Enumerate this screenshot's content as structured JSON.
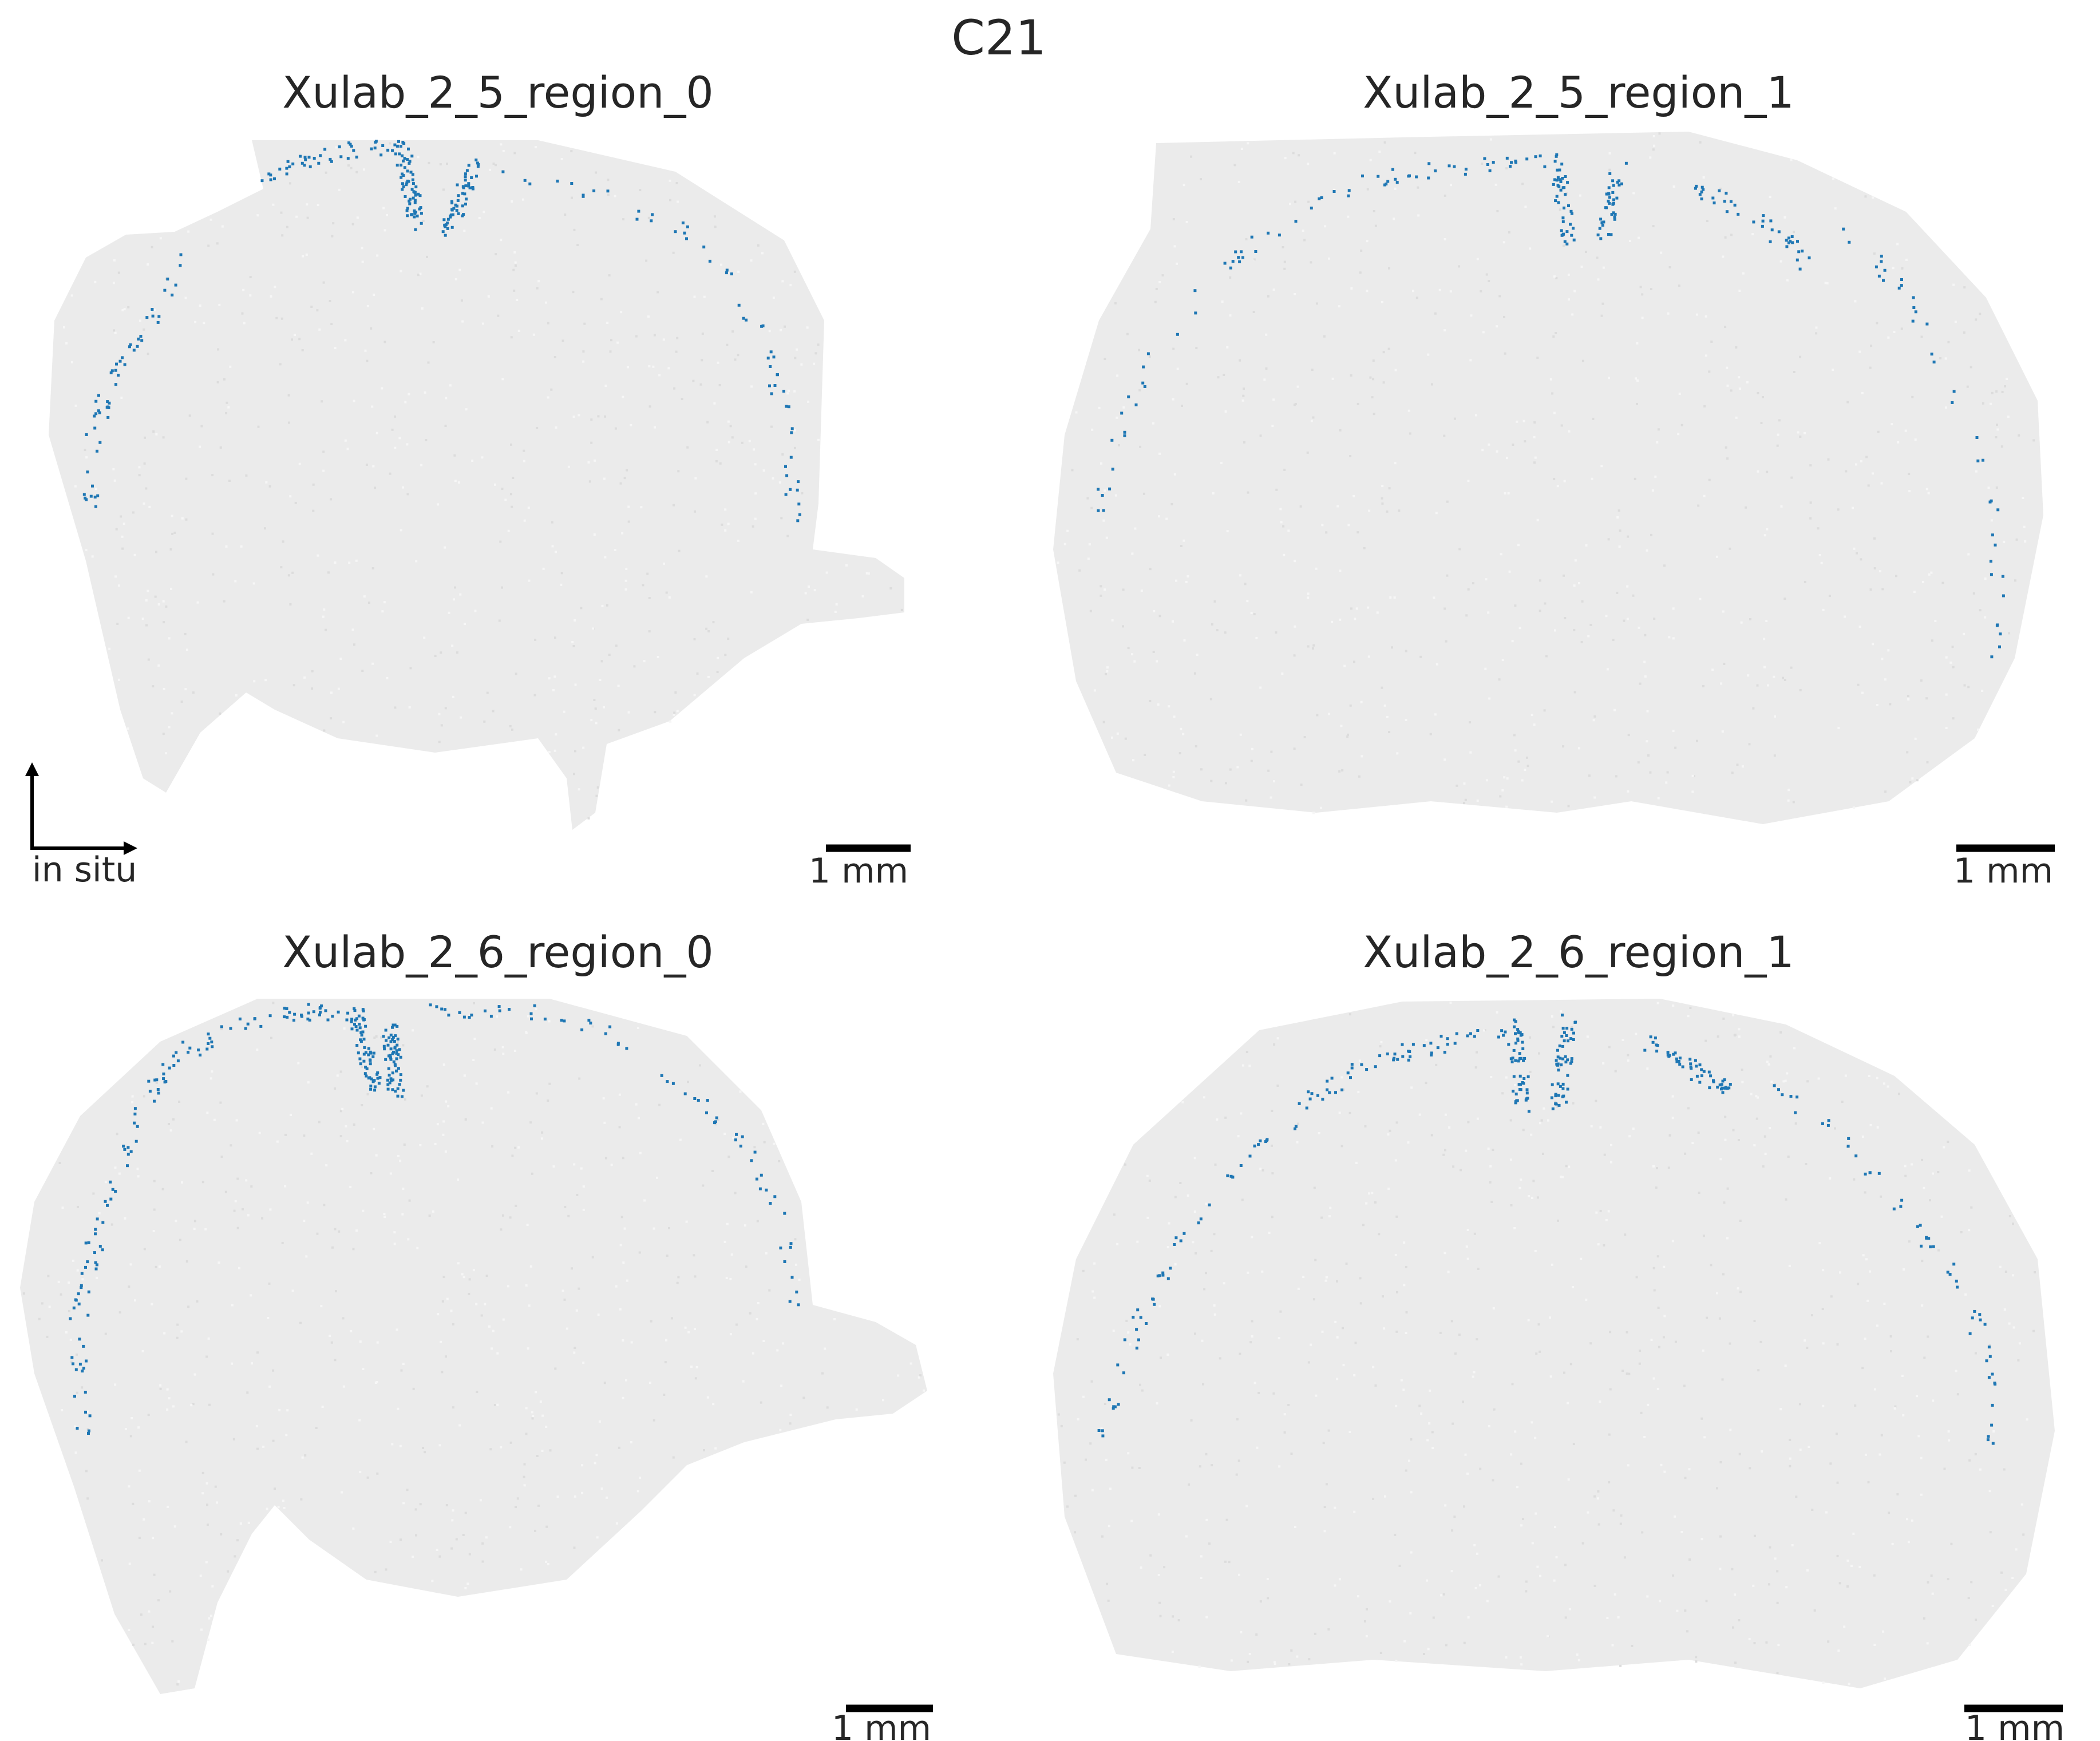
{
  "figure": {
    "title": "C21",
    "background_color": "#ffffff",
    "point_color": "#e8e8e8",
    "highlight_color": "#1f77b4",
    "text_color": "#262626"
  },
  "axis_indicator": {
    "label": "in situ"
  },
  "scale_bar": {
    "label": "1 mm",
    "length_mm": 1
  },
  "chart_data": [
    {
      "type": "scatter",
      "title": "Xulab_2_5_region_0",
      "highlighted_category": "C21",
      "scale_bar_label": "1 mm",
      "legend": "none",
      "grid": false,
      "axes_visible": false
    },
    {
      "type": "scatter",
      "title": "Xulab_2_5_region_1",
      "highlighted_category": "C21",
      "scale_bar_label": "1 mm",
      "legend": "none",
      "grid": false,
      "axes_visible": false
    },
    {
      "type": "scatter",
      "title": "Xulab_2_6_region_0",
      "highlighted_category": "C21",
      "scale_bar_label": "1 mm",
      "legend": "none",
      "grid": false,
      "axes_visible": false
    },
    {
      "type": "scatter",
      "title": "Xulab_2_6_region_1",
      "highlighted_category": "C21",
      "scale_bar_label": "1 mm",
      "legend": "none",
      "grid": false,
      "axes_visible": false
    }
  ]
}
